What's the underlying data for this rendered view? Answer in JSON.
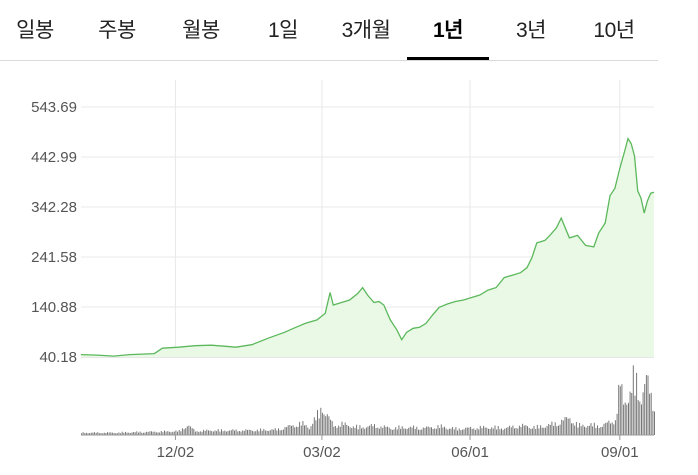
{
  "tabs": [
    {
      "label": "일봉",
      "active": false
    },
    {
      "label": "주봉",
      "active": false
    },
    {
      "label": "월봉",
      "active": false
    },
    {
      "label": "1일",
      "active": false
    },
    {
      "label": "3개월",
      "active": false
    },
    {
      "label": "1년",
      "active": true
    },
    {
      "label": "3년",
      "active": false
    },
    {
      "label": "10년",
      "active": false
    }
  ],
  "colors": {
    "line": "#5cb85c",
    "fill": "#e9f9e6",
    "volume": "#777777",
    "grid": "#e8e8e8"
  },
  "chart_data": {
    "type": "area",
    "y_ticks": [
      "543.69",
      "442.99",
      "342.28",
      "241.58",
      "140.88",
      "40.18"
    ],
    "ylim": [
      40.18,
      543.69
    ],
    "x_ticks": [
      "12/02",
      "03/02",
      "06/01",
      "09/01"
    ],
    "x_tick_day": [
      58,
      148,
      239,
      331
    ],
    "x_range": [
      0,
      352
    ],
    "price": [
      [
        0,
        45
      ],
      [
        10,
        44
      ],
      [
        20,
        42
      ],
      [
        30,
        45
      ],
      [
        45,
        47
      ],
      [
        50,
        58
      ],
      [
        60,
        60
      ],
      [
        70,
        63
      ],
      [
        80,
        64
      ],
      [
        88,
        62
      ],
      [
        95,
        60
      ],
      [
        105,
        65
      ],
      [
        115,
        78
      ],
      [
        125,
        90
      ],
      [
        132,
        100
      ],
      [
        138,
        108
      ],
      [
        145,
        115
      ],
      [
        150,
        128
      ],
      [
        153,
        170
      ],
      [
        155,
        145
      ],
      [
        160,
        150
      ],
      [
        165,
        155
      ],
      [
        170,
        168
      ],
      [
        173,
        180
      ],
      [
        176,
        165
      ],
      [
        180,
        150
      ],
      [
        183,
        152
      ],
      [
        186,
        145
      ],
      [
        190,
        115
      ],
      [
        194,
        95
      ],
      [
        197,
        75
      ],
      [
        200,
        90
      ],
      [
        204,
        98
      ],
      [
        208,
        100
      ],
      [
        212,
        108
      ],
      [
        216,
        125
      ],
      [
        220,
        140
      ],
      [
        225,
        147
      ],
      [
        230,
        152
      ],
      [
        235,
        155
      ],
      [
        240,
        160
      ],
      [
        245,
        165
      ],
      [
        250,
        175
      ],
      [
        255,
        180
      ],
      [
        260,
        200
      ],
      [
        265,
        205
      ],
      [
        270,
        210
      ],
      [
        274,
        220
      ],
      [
        277,
        240
      ],
      [
        280,
        270
      ],
      [
        285,
        275
      ],
      [
        288,
        285
      ],
      [
        292,
        300
      ],
      [
        295,
        320
      ],
      [
        300,
        280
      ],
      [
        305,
        285
      ],
      [
        310,
        265
      ],
      [
        315,
        262
      ],
      [
        318,
        290
      ],
      [
        322,
        310
      ],
      [
        325,
        365
      ],
      [
        328,
        380
      ],
      [
        331,
        420
      ],
      [
        334,
        455
      ],
      [
        336,
        480
      ],
      [
        338,
        470
      ],
      [
        340,
        445
      ],
      [
        342,
        375
      ],
      [
        344,
        360
      ],
      [
        346,
        330
      ],
      [
        348,
        355
      ],
      [
        350,
        370
      ],
      [
        352,
        372
      ]
    ],
    "volume": [
      [
        0,
        3
      ],
      [
        20,
        3
      ],
      [
        40,
        4
      ],
      [
        60,
        5
      ],
      [
        65,
        13
      ],
      [
        70,
        5
      ],
      [
        80,
        6
      ],
      [
        100,
        6
      ],
      [
        120,
        7
      ],
      [
        135,
        15
      ],
      [
        140,
        10
      ],
      [
        145,
        25
      ],
      [
        148,
        38
      ],
      [
        150,
        28
      ],
      [
        155,
        12
      ],
      [
        160,
        14
      ],
      [
        170,
        10
      ],
      [
        180,
        12
      ],
      [
        190,
        9
      ],
      [
        200,
        10
      ],
      [
        210,
        9
      ],
      [
        220,
        11
      ],
      [
        230,
        8
      ],
      [
        240,
        9
      ],
      [
        250,
        10
      ],
      [
        260,
        9
      ],
      [
        270,
        12
      ],
      [
        280,
        10
      ],
      [
        290,
        14
      ],
      [
        300,
        22
      ],
      [
        305,
        12
      ],
      [
        310,
        13
      ],
      [
        320,
        12
      ],
      [
        328,
        20
      ],
      [
        331,
        68
      ],
      [
        333,
        40
      ],
      [
        335,
        50
      ],
      [
        337,
        55
      ],
      [
        339,
        70
      ],
      [
        341,
        65
      ],
      [
        343,
        48
      ],
      [
        345,
        60
      ],
      [
        347,
        72
      ],
      [
        349,
        55
      ],
      [
        351,
        40
      ],
      [
        352,
        38
      ]
    ]
  }
}
